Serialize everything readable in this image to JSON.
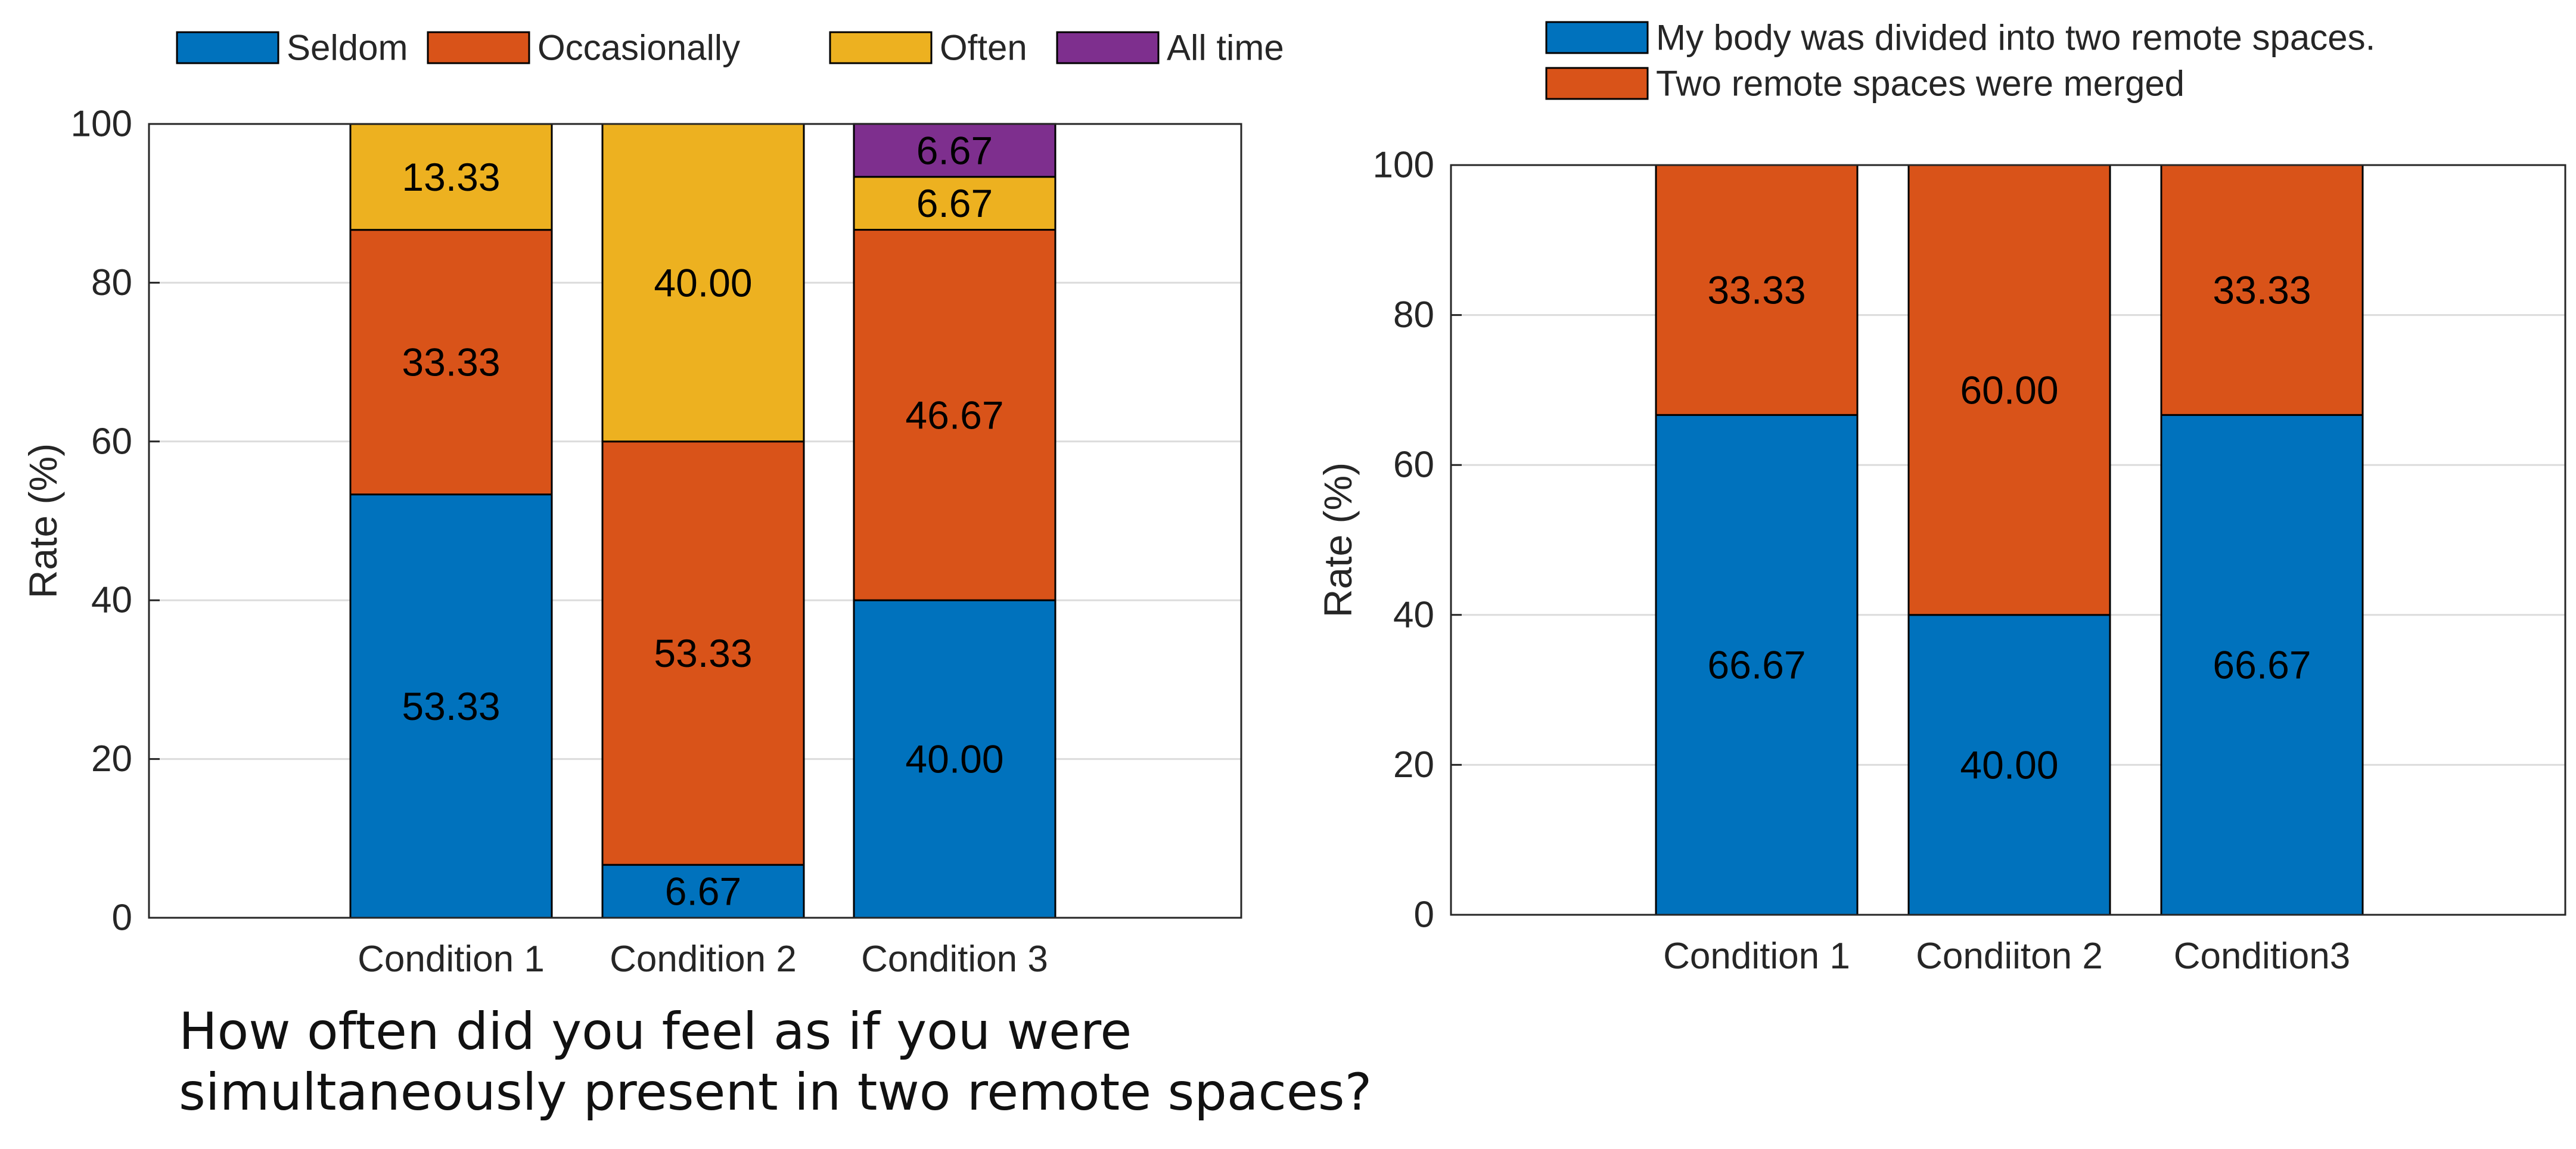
{
  "caption": {
    "line1": "How often did you feel as if you were",
    "line2": "simultaneously present in two remote spaces?"
  },
  "chart_data": [
    {
      "type": "bar",
      "stacked": true,
      "categories": [
        "Condition 1",
        "Condition 2",
        "Condition 3"
      ],
      "series": [
        {
          "name": "Seldom",
          "color": "#0072BD",
          "values": [
            53.33,
            6.67,
            40.0
          ]
        },
        {
          "name": "Occasionally",
          "color": "#D95319",
          "values": [
            33.33,
            53.33,
            46.67
          ]
        },
        {
          "name": "Often",
          "color": "#EDB120",
          "values": [
            13.33,
            40.0,
            6.67
          ]
        },
        {
          "name": "All time",
          "color": "#7E2F8E",
          "values": [
            0,
            0,
            6.67
          ]
        }
      ],
      "data_labels": [
        [
          "53.33",
          "33.33",
          "13.33",
          ""
        ],
        [
          "6.67",
          "53.33",
          "40.00",
          ""
        ],
        [
          "40.00",
          "46.67",
          "6.67",
          "6.67"
        ]
      ],
      "ylabel": "Rate (%)",
      "ylim": [
        0,
        100
      ],
      "yticks": [
        0,
        20,
        40,
        60,
        80,
        100
      ],
      "grid": true,
      "legend": "top, horizontal"
    },
    {
      "type": "bar",
      "stacked": true,
      "categories": [
        "Condition 1",
        "Condiiton 2",
        "Condition3"
      ],
      "series": [
        {
          "name": "My body was divided into two remote spaces.",
          "color": "#0072BD",
          "values": [
            66.67,
            40.0,
            66.67
          ]
        },
        {
          "name": "Two remote spaces were merged",
          "color": "#D95319",
          "values": [
            33.33,
            60.0,
            33.33
          ]
        }
      ],
      "data_labels": [
        [
          "66.67",
          "33.33"
        ],
        [
          "40.00",
          "60.00"
        ],
        [
          "66.67",
          "33.33"
        ]
      ],
      "ylabel": "Rate (%)",
      "ylim": [
        0,
        100
      ],
      "yticks": [
        0,
        20,
        40,
        60,
        80,
        100
      ],
      "grid": true,
      "legend": "top, vertical"
    }
  ]
}
